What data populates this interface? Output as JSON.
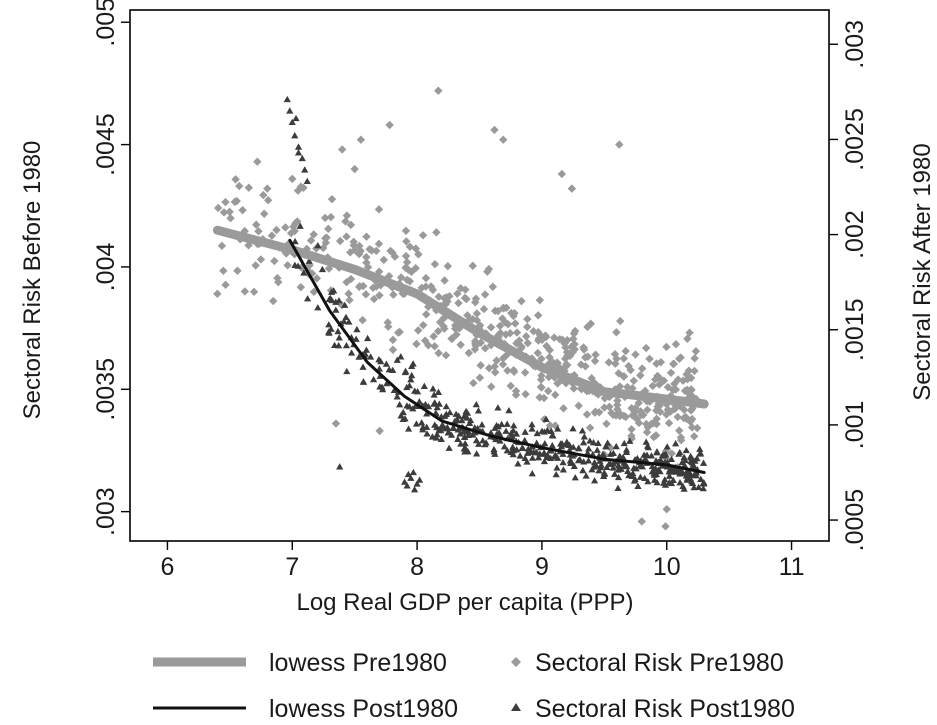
{
  "chart_data": {
    "type": "scatter",
    "title": "",
    "xlabel": "Log Real GDP per capita (PPP)",
    "ylabel_left": "Sectoral Risk Before 1980",
    "ylabel_right": "Sectoral Risk After 1980",
    "xlim": [
      5.7,
      11.3
    ],
    "ylim_left": [
      0.00288,
      0.00505
    ],
    "ylim_right": [
      0.00039,
      0.00318
    ],
    "x_ticks": [
      6,
      7,
      8,
      9,
      10,
      11
    ],
    "x_tick_labels": [
      "6",
      "7",
      "8",
      "9",
      "10",
      "11"
    ],
    "y_left_ticks": [
      0.003,
      0.0035,
      0.004,
      0.0045,
      0.005
    ],
    "y_left_tick_labels": [
      ".003",
      ".0035",
      ".004",
      ".0045",
      ".005"
    ],
    "y_right_ticks": [
      0.0005,
      0.001,
      0.0015,
      0.002,
      0.0025,
      0.003
    ],
    "y_right_tick_labels": [
      ".0005",
      ".001",
      ".0015",
      ".002",
      ".0025",
      ".003"
    ],
    "grid": false,
    "legend_position": "bottom",
    "series": [
      {
        "name": "lowess Pre1980",
        "kind": "line",
        "axis": "left",
        "color": "#9a9a9a",
        "x": [
          6.4,
          7.0,
          7.5,
          8.0,
          8.5,
          9.0,
          9.5,
          10.0,
          10.3
        ],
        "y": [
          0.00415,
          0.00407,
          0.00399,
          0.00389,
          0.00373,
          0.00359,
          0.00349,
          0.00346,
          0.00344
        ]
      },
      {
        "name": "lowess Post1980",
        "kind": "line",
        "axis": "right",
        "color": "#111111",
        "x": [
          6.98,
          7.3,
          7.6,
          7.9,
          8.2,
          8.6,
          9.0,
          9.5,
          10.0,
          10.3
        ],
        "y": [
          0.00197,
          0.0016,
          0.00133,
          0.00115,
          0.00102,
          0.00094,
          0.00088,
          0.00082,
          0.00079,
          0.00075
        ]
      },
      {
        "name": "Sectoral Risk Pre1980",
        "kind": "scatter",
        "axis": "left",
        "marker": "diamond",
        "color": "#9a9a9a",
        "generated": {
          "n": 540,
          "x_range": [
            6.4,
            10.25
          ],
          "trend_x": [
            6.4,
            7.0,
            7.5,
            8.0,
            8.5,
            9.0,
            9.5,
            10.0,
            10.3
          ],
          "trend_y": [
            0.00418,
            0.0041,
            0.004,
            0.00388,
            0.00374,
            0.00362,
            0.00352,
            0.00348,
            0.00346
          ],
          "spread": 0.00022
        },
        "x": [
          6.4,
          6.62,
          6.72,
          6.8,
          7.4,
          7.5,
          7.55,
          7.78,
          8.17,
          8.62,
          8.69,
          9.16,
          9.24,
          9.62,
          9.8,
          9.99,
          10.0,
          7.0,
          7.35,
          7.7
        ],
        "y": [
          0.00389,
          0.0039,
          0.00443,
          0.00432,
          0.00448,
          0.0044,
          0.00452,
          0.00458,
          0.00472,
          0.00456,
          0.00452,
          0.00438,
          0.00432,
          0.0045,
          0.00296,
          0.00294,
          0.00301,
          0.00436,
          0.00336,
          0.00333
        ]
      },
      {
        "name": "Sectoral Risk Post1980",
        "kind": "scatter",
        "axis": "right",
        "marker": "triangle",
        "color": "#3c3c3c",
        "generated": {
          "n": 480,
          "x_range": [
            6.98,
            10.3
          ],
          "trend_x": [
            6.98,
            7.3,
            7.6,
            7.9,
            8.2,
            8.6,
            9.0,
            9.5,
            10.0,
            10.3
          ],
          "trend_y": [
            0.00197,
            0.0016,
            0.00133,
            0.00115,
            0.00102,
            0.00094,
            0.00088,
            0.00082,
            0.00079,
            0.00075
          ],
          "spread": 0.00012
        },
        "x": [
          6.96,
          6.98,
          7.0,
          7.02,
          7.05,
          7.08,
          7.1,
          7.12,
          7.05,
          7.03,
          7.9,
          7.92,
          7.95,
          7.98,
          8.0,
          8.02,
          7.93,
          7.97,
          7.38,
          8.35
        ],
        "y": [
          0.00271,
          0.00265,
          0.00259,
          0.00252,
          0.00246,
          0.0024,
          0.00234,
          0.00228,
          0.00243,
          0.00261,
          0.0007,
          0.00068,
          0.00072,
          0.00066,
          0.00069,
          0.00071,
          0.00074,
          0.00075,
          0.00078,
          0.0009
        ]
      }
    ]
  }
}
